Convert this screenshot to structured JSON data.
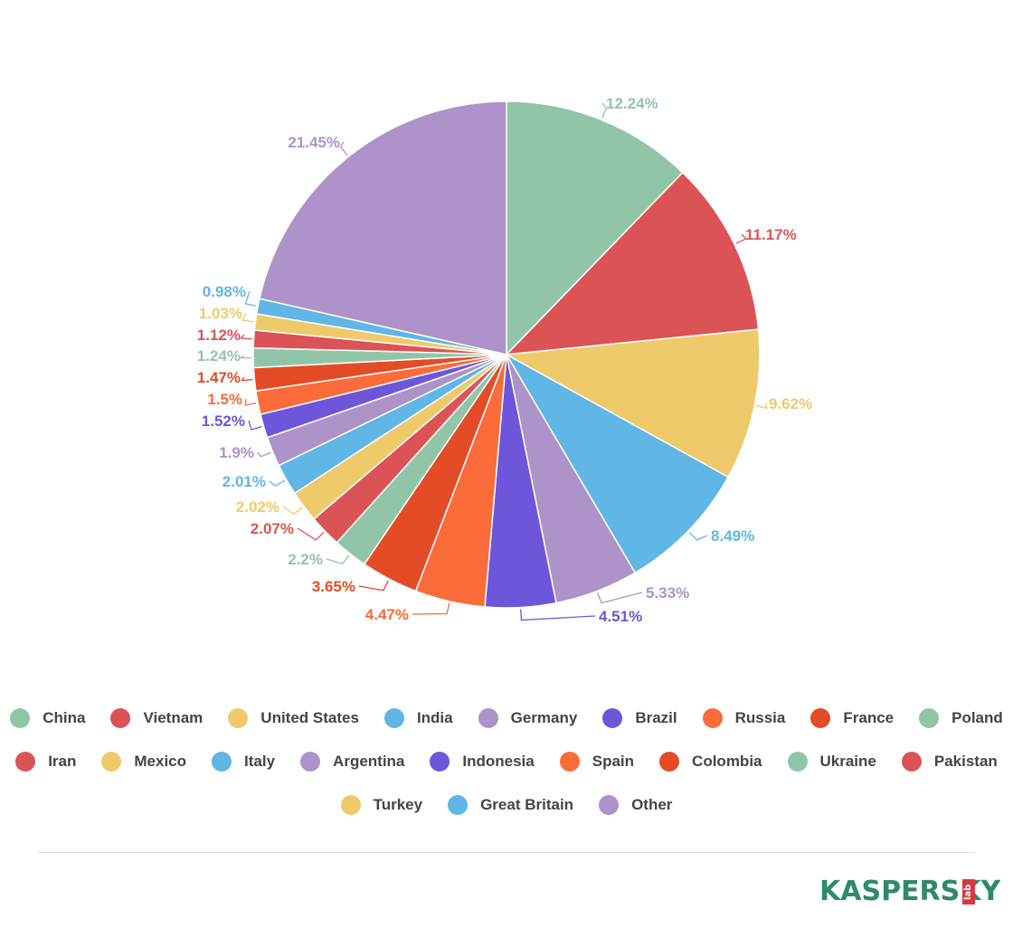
{
  "chart_data": {
    "type": "pie",
    "title": "",
    "start_angle_deg": 0,
    "direction": "clockwise",
    "slices": [
      {
        "label": "China",
        "value": 12.24,
        "color": "#92c5a8"
      },
      {
        "label": "Vietnam",
        "value": 11.17,
        "color": "#dc5357"
      },
      {
        "label": "United States",
        "value": 9.62,
        "color": "#eeca6a"
      },
      {
        "label": "India",
        "value": 8.49,
        "color": "#60b6e5"
      },
      {
        "label": "Germany",
        "value": 5.33,
        "color": "#ad93c9"
      },
      {
        "label": "Brazil",
        "value": 4.51,
        "color": "#6e56db"
      },
      {
        "label": "Russia",
        "value": 4.47,
        "color": "#fc6b3a"
      },
      {
        "label": "France",
        "value": 3.65,
        "color": "#e34c26"
      },
      {
        "label": "Poland",
        "value": 2.2,
        "color": "#92c5a8"
      },
      {
        "label": "Iran",
        "value": 2.07,
        "color": "#dc5357"
      },
      {
        "label": "Mexico",
        "value": 2.02,
        "color": "#eeca6a"
      },
      {
        "label": "Italy",
        "value": 2.01,
        "color": "#60b6e5"
      },
      {
        "label": "Argentina",
        "value": 1.9,
        "color": "#ad93c9"
      },
      {
        "label": "Indonesia",
        "value": 1.52,
        "color": "#6e56db"
      },
      {
        "label": "Spain",
        "value": 1.5,
        "color": "#fc6b3a"
      },
      {
        "label": "Colombia",
        "value": 1.47,
        "color": "#e34c26"
      },
      {
        "label": "Ukraine",
        "value": 1.24,
        "color": "#92c5a8"
      },
      {
        "label": "Pakistan",
        "value": 1.12,
        "color": "#dc5357"
      },
      {
        "label": "Turkey",
        "value": 1.03,
        "color": "#eeca6a"
      },
      {
        "label": "Great Britain",
        "value": 0.98,
        "color": "#60b6e5"
      },
      {
        "label": "Other",
        "value": 21.45,
        "color": "#ad93c9"
      }
    ],
    "data_labels": [
      "12.24%",
      "11.17%",
      "9.62%",
      "8.49%",
      "5.33%",
      "4.51%",
      "4.47%",
      "3.65%",
      "2.2%",
      "2.07%",
      "2.02%",
      "2.01%",
      "1.9%",
      "1.52%",
      "1.5%",
      "1.47%",
      "1.24%",
      "1.12%",
      "1.03%",
      "0.98%",
      "21.45%"
    ],
    "legend_position": "bottom"
  },
  "legend": {
    "rows": [
      [
        {
          "label": "China",
          "color": "#92c5a8"
        },
        {
          "label": "Vietnam",
          "color": "#dc5357"
        },
        {
          "label": "United States",
          "color": "#eeca6a"
        },
        {
          "label": "India",
          "color": "#60b6e5"
        },
        {
          "label": "Germany",
          "color": "#ad93c9"
        },
        {
          "label": "Brazil",
          "color": "#6e56db"
        },
        {
          "label": "Russia",
          "color": "#fc6b3a"
        },
        {
          "label": "France",
          "color": "#e34c26"
        },
        {
          "label": "Poland",
          "color": "#92c5a8"
        }
      ],
      [
        {
          "label": "Iran",
          "color": "#dc5357"
        },
        {
          "label": "Mexico",
          "color": "#eeca6a"
        },
        {
          "label": "Italy",
          "color": "#60b6e5"
        },
        {
          "label": "Argentina",
          "color": "#ad93c9"
        },
        {
          "label": "Indonesia",
          "color": "#6e56db"
        },
        {
          "label": "Spain",
          "color": "#fc6b3a"
        },
        {
          "label": "Colombia",
          "color": "#e34c26"
        },
        {
          "label": "Ukraine",
          "color": "#92c5a8"
        },
        {
          "label": "Pakistan",
          "color": "#dc5357"
        }
      ],
      [
        {
          "label": "Turkey",
          "color": "#eeca6a"
        },
        {
          "label": "Great Britain",
          "color": "#60b6e5"
        },
        {
          "label": "Other",
          "color": "#ad93c9"
        }
      ]
    ]
  },
  "logo": {
    "text": "KASPERSKY",
    "sub": "lab",
    "brand_color": "#2e8a6a",
    "accent_color": "#d9383e"
  }
}
